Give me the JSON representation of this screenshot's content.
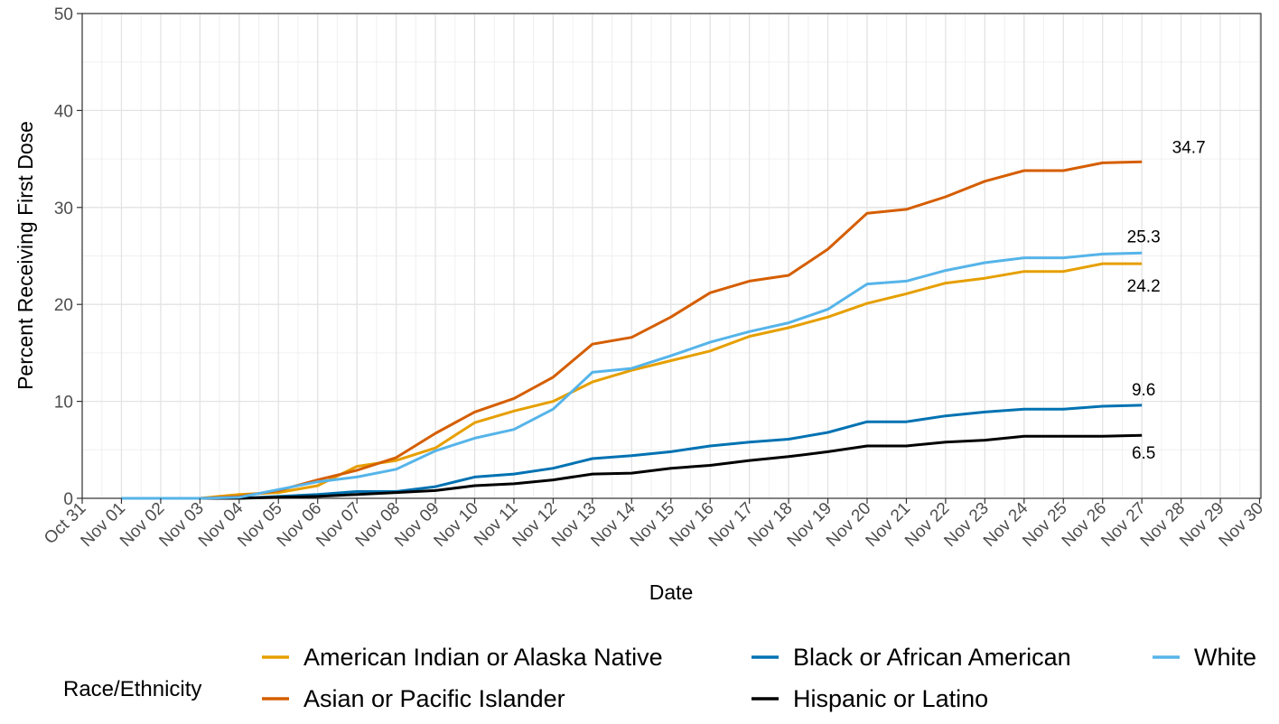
{
  "chart_data": {
    "type": "line",
    "xlabel": "Date",
    "ylabel": "Percent Receiving First Dose",
    "ylim": [
      0,
      50
    ],
    "y_ticks": [
      0,
      10,
      20,
      30,
      40,
      50
    ],
    "x_tick_labels": [
      "Oct 31",
      "Nov 01",
      "Nov 02",
      "Nov 03",
      "Nov 04",
      "Nov 05",
      "Nov 06",
      "Nov 07",
      "Nov 08",
      "Nov 09",
      "Nov 10",
      "Nov 11",
      "Nov 12",
      "Nov 13",
      "Nov 14",
      "Nov 15",
      "Nov 16",
      "Nov 17",
      "Nov 18",
      "Nov 19",
      "Nov 20",
      "Nov 21",
      "Nov 22",
      "Nov 23",
      "Nov 24",
      "Nov 25",
      "Nov 26",
      "Nov 27",
      "Nov 28",
      "Nov 29",
      "Nov 30"
    ],
    "x": [
      "Nov 01",
      "Nov 02",
      "Nov 03",
      "Nov 04",
      "Nov 05",
      "Nov 06",
      "Nov 07",
      "Nov 08",
      "Nov 09",
      "Nov 10",
      "Nov 11",
      "Nov 12",
      "Nov 13",
      "Nov 14",
      "Nov 15",
      "Nov 16",
      "Nov 17",
      "Nov 18",
      "Nov 19",
      "Nov 20",
      "Nov 21",
      "Nov 22",
      "Nov 23",
      "Nov 24",
      "Nov 25",
      "Nov 26",
      "Nov 27"
    ],
    "grid": true,
    "legend_title": "Race/Ethnicity",
    "legend_position": "bottom",
    "series": [
      {
        "name": "American Indian or Alaska Native",
        "color": "#E69F00",
        "end_label": "24.2",
        "values": [
          0,
          0,
          0,
          0.4,
          0.6,
          1.3,
          3.3,
          3.9,
          5.2,
          7.8,
          9.0,
          10.0,
          12.0,
          13.2,
          14.2,
          15.2,
          16.7,
          17.6,
          18.7,
          20.1,
          21.1,
          22.2,
          22.7,
          23.4,
          23.4,
          24.2,
          24.2
        ]
      },
      {
        "name": "Asian or Pacific Islander",
        "color": "#D55E00",
        "end_label": "34.7",
        "values": [
          0,
          0,
          0,
          0.2,
          0.8,
          1.9,
          2.9,
          4.2,
          6.7,
          8.9,
          10.3,
          12.5,
          15.9,
          16.6,
          18.7,
          21.2,
          22.4,
          23.0,
          25.7,
          29.4,
          29.8,
          31.1,
          32.7,
          33.8,
          33.8,
          34.6,
          34.7
        ]
      },
      {
        "name": "Black or African American",
        "color": "#0072B2",
        "end_label": "9.6",
        "values": [
          0,
          0,
          0,
          0,
          0.2,
          0.4,
          0.7,
          0.7,
          1.2,
          2.2,
          2.5,
          3.1,
          4.1,
          4.4,
          4.8,
          5.4,
          5.8,
          6.1,
          6.8,
          7.9,
          7.9,
          8.5,
          8.9,
          9.2,
          9.2,
          9.5,
          9.6
        ]
      },
      {
        "name": "Hispanic or Latino",
        "color": "#000000",
        "end_label": "6.5",
        "values": [
          0,
          0,
          0,
          0,
          0.1,
          0.2,
          0.4,
          0.6,
          0.8,
          1.3,
          1.5,
          1.9,
          2.5,
          2.6,
          3.1,
          3.4,
          3.9,
          4.3,
          4.8,
          5.4,
          5.4,
          5.8,
          6.0,
          6.4,
          6.4,
          6.4,
          6.5
        ]
      },
      {
        "name": "White",
        "color": "#56B4E9",
        "end_label": "25.3",
        "values": [
          0,
          0,
          0,
          0.1,
          0.9,
          1.7,
          2.2,
          3.0,
          4.9,
          6.2,
          7.1,
          9.2,
          13.0,
          13.4,
          14.7,
          16.1,
          17.2,
          18.1,
          19.5,
          22.1,
          22.4,
          23.5,
          24.3,
          24.8,
          24.8,
          25.2,
          25.3
        ]
      }
    ]
  }
}
